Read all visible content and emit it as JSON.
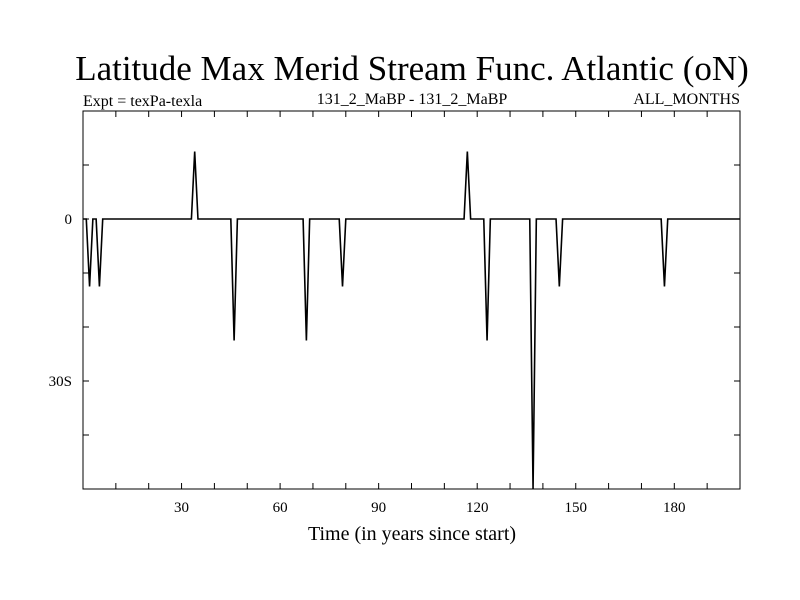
{
  "chart_data": {
    "type": "line",
    "title": "Latitude Max Merid Stream Func. Atlantic (oN)",
    "subtitle_left": "Expt = texPa-texla",
    "subtitle_center": "131_2_MaBP - 131_2_MaBP",
    "subtitle_right": "ALL_MONTHS",
    "xlabel": "Time (in years since start)",
    "ylabel": "",
    "xlim": [
      0,
      200
    ],
    "ylim": [
      -50,
      20
    ],
    "x_ticks": [
      30,
      60,
      90,
      120,
      150,
      180
    ],
    "x_tick_labels": [
      "30",
      "60",
      "90",
      "120",
      "150",
      "180"
    ],
    "y_ticks": [
      0,
      -30
    ],
    "y_tick_labels": [
      "0",
      "30S"
    ],
    "grid": false,
    "series": [
      {
        "color": "#000000",
        "x": [
          0,
          1,
          2,
          3,
          4,
          5,
          6,
          7,
          33,
          34,
          35,
          45,
          46,
          47,
          67,
          68,
          69,
          70,
          78,
          79,
          80,
          116,
          117,
          118,
          122,
          123,
          124,
          136,
          137,
          138,
          144,
          145,
          146,
          176,
          177,
          178,
          200
        ],
        "y": [
          0,
          0,
          -12.5,
          0,
          0,
          -12.5,
          0,
          0,
          0,
          12.5,
          0,
          0,
          -22.5,
          0,
          0,
          -22.5,
          0,
          0,
          0,
          -12.5,
          0,
          0,
          12.5,
          0,
          0,
          -22.5,
          0,
          0,
          -50,
          0,
          0,
          -12.5,
          0,
          0,
          -12.5,
          0,
          0
        ]
      }
    ]
  }
}
